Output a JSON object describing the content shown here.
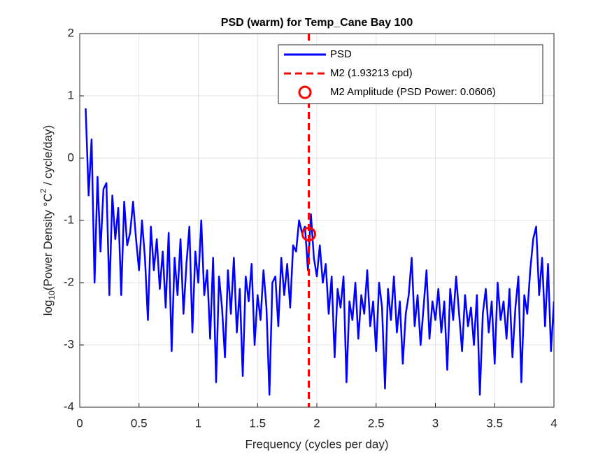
{
  "chart_data": {
    "type": "line",
    "title": "PSD (warm) for Temp_Cane Bay 100",
    "xlabel": "Frequency (cycles per day)",
    "ylabel_parts": [
      "log",
      "10",
      "(Power Density °C",
      "2",
      " / cycle/day)"
    ],
    "x": [
      0.05,
      0.075,
      0.1,
      0.125,
      0.15,
      0.175,
      0.2,
      0.225,
      0.25,
      0.275,
      0.3,
      0.325,
      0.35,
      0.375,
      0.4,
      0.425,
      0.45,
      0.475,
      0.5,
      0.525,
      0.55,
      0.575,
      0.6,
      0.625,
      0.65,
      0.675,
      0.7,
      0.725,
      0.75,
      0.775,
      0.8,
      0.825,
      0.85,
      0.875,
      0.9,
      0.925,
      0.95,
      0.975,
      1.0,
      1.025,
      1.05,
      1.075,
      1.1,
      1.125,
      1.15,
      1.175,
      1.2,
      1.225,
      1.25,
      1.275,
      1.3,
      1.325,
      1.35,
      1.375,
      1.4,
      1.425,
      1.45,
      1.475,
      1.5,
      1.525,
      1.55,
      1.575,
      1.6,
      1.625,
      1.65,
      1.675,
      1.7,
      1.725,
      1.75,
      1.775,
      1.8,
      1.825,
      1.85,
      1.875,
      1.9,
      1.925,
      1.95,
      1.975,
      2.0,
      2.025,
      2.05,
      2.075,
      2.1,
      2.125,
      2.15,
      2.175,
      2.2,
      2.225,
      2.25,
      2.275,
      2.3,
      2.325,
      2.35,
      2.375,
      2.4,
      2.425,
      2.45,
      2.475,
      2.5,
      2.525,
      2.55,
      2.575,
      2.6,
      2.625,
      2.65,
      2.675,
      2.7,
      2.725,
      2.75,
      2.775,
      2.8,
      2.825,
      2.85,
      2.875,
      2.9,
      2.925,
      2.95,
      2.975,
      3.0,
      3.025,
      3.05,
      3.075,
      3.1,
      3.125,
      3.15,
      3.175,
      3.2,
      3.225,
      3.25,
      3.275,
      3.3,
      3.325,
      3.35,
      3.375,
      3.4,
      3.425,
      3.45,
      3.475,
      3.5,
      3.525,
      3.55,
      3.575,
      3.6,
      3.625,
      3.65,
      3.675,
      3.7,
      3.725,
      3.75,
      3.775,
      3.8,
      3.825,
      3.85,
      3.875,
      3.9,
      3.925,
      3.95,
      3.975,
      4.0
    ],
    "series": [
      {
        "name": "PSD",
        "color": "#0000ff",
        "values": [
          0.8,
          -0.6,
          0.3,
          -2.0,
          -0.3,
          -1.5,
          -0.5,
          -0.4,
          -2.2,
          -0.6,
          -1.3,
          -0.8,
          -2.2,
          -0.7,
          -1.4,
          -1.2,
          -0.7,
          -1.3,
          -1.8,
          -1.0,
          -1.6,
          -2.6,
          -1.1,
          -1.8,
          -1.3,
          -2.1,
          -1.5,
          -2.4,
          -1.2,
          -3.1,
          -1.6,
          -2.2,
          -1.3,
          -2.5,
          -1.7,
          -1.1,
          -2.8,
          -1.5,
          -2.0,
          -1.0,
          -2.2,
          -1.8,
          -2.9,
          -1.6,
          -3.6,
          -1.9,
          -2.4,
          -3.2,
          -1.8,
          -2.5,
          -1.6,
          -2.8,
          -2.1,
          -3.5,
          -1.9,
          -2.3,
          -1.7,
          -3.0,
          -2.2,
          -2.6,
          -1.8,
          -2.4,
          -3.8,
          -2.0,
          -1.9,
          -2.7,
          -1.6,
          -2.2,
          -1.7,
          -2.4,
          -1.4,
          -1.5,
          -1.0,
          -1.2,
          -1.1,
          -1.8,
          -0.9,
          -1.6,
          -1.9,
          -1.4,
          -2.0,
          -1.7,
          -2.5,
          -1.9,
          -3.2,
          -2.1,
          -2.4,
          -1.9,
          -3.6,
          -2.3,
          -2.6,
          -2.0,
          -2.9,
          -2.2,
          -2.5,
          -1.8,
          -2.7,
          -2.3,
          -3.1,
          -2.0,
          -2.4,
          -3.7,
          -2.1,
          -2.6,
          -1.9,
          -2.8,
          -2.3,
          -3.3,
          -2.5,
          -2.2,
          -1.6,
          -2.7,
          -2.2,
          -3.0,
          -2.4,
          -1.8,
          -2.9,
          -2.3,
          -2.6,
          -2.1,
          -2.8,
          -2.3,
          -3.4,
          -2.1,
          -2.6,
          -1.9,
          -2.5,
          -3.1,
          -2.2,
          -2.7,
          -2.4,
          -3.0,
          -2.2,
          -3.8,
          -2.5,
          -2.1,
          -2.8,
          -2.3,
          -3.3,
          -2.0,
          -2.6,
          -2.3,
          -2.9,
          -2.1,
          -3.2,
          -2.4,
          -1.9,
          -3.6,
          -2.2,
          -2.5,
          -1.8,
          -1.3,
          -1.1,
          -2.2,
          -1.6,
          -2.7,
          -1.7,
          -3.1,
          -2.3
        ]
      }
    ],
    "m2": {
      "name": "M2 (1.93213 cpd)",
      "x": 1.93213,
      "color": "#ff0000"
    },
    "m2_amplitude": {
      "name": "M2 Amplitude (PSD Power: 0.0606)",
      "y": -1.22,
      "color": "#ff0000"
    },
    "xlim": [
      0,
      4
    ],
    "ylim": [
      -4,
      2
    ],
    "xticks": [
      0,
      0.5,
      1,
      1.5,
      2,
      2.5,
      3,
      3.5,
      4
    ],
    "yticks": [
      -4,
      -3,
      -2,
      -1,
      0,
      1,
      2
    ],
    "grid": true,
    "legend": "upper right"
  }
}
